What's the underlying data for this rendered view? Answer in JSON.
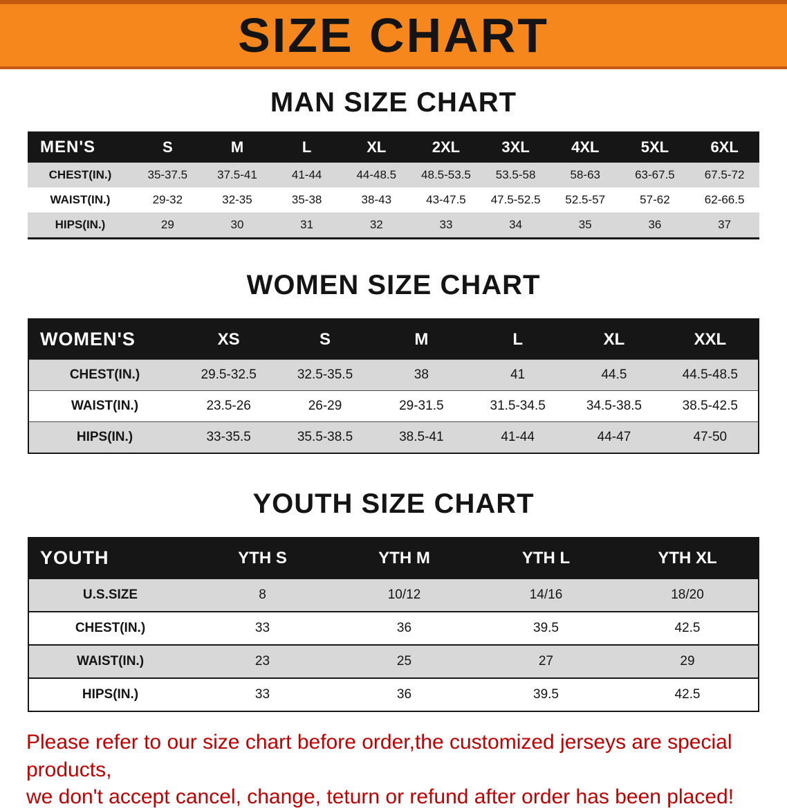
{
  "banner": {
    "title": "SIZE CHART"
  },
  "colors": {
    "banner_orange": "#f6871d",
    "banner_trim": "#c45911",
    "header_black": "#161616",
    "row_gray": "#d8d8d8",
    "disclaimer_red": "#c00000"
  },
  "sections": {
    "men": {
      "heading": "MAN SIZE CHART",
      "table": {
        "header": [
          "MEN'S",
          "S",
          "M",
          "L",
          "XL",
          "2XL",
          "3XL",
          "4XL",
          "5XL",
          "6XL"
        ],
        "rows": [
          [
            "CHEST(IN.)",
            "35-37.5",
            "37.5-41",
            "41-44",
            "44-48.5",
            "48.5-53.5",
            "53.5-58",
            "58-63",
            "63-67.5",
            "67.5-72"
          ],
          [
            "WAIST(IN.)",
            "29-32",
            "32-35",
            "35-38",
            "38-43",
            "43-47.5",
            "47.5-52.5",
            "52.5-57",
            "57-62",
            "62-66.5"
          ],
          [
            "HIPS(IN.)",
            "29",
            "30",
            "31",
            "32",
            "33",
            "34",
            "35",
            "36",
            "37"
          ]
        ]
      }
    },
    "women": {
      "heading": "WOMEN SIZE CHART",
      "table": {
        "header": [
          "WOMEN'S",
          "XS",
          "S",
          "M",
          "L",
          "XL",
          "XXL"
        ],
        "rows": [
          [
            "CHEST(IN.)",
            "29.5-32.5",
            "32.5-35.5",
            "38",
            "41",
            "44.5",
            "44.5-48.5"
          ],
          [
            "WAIST(IN.)",
            "23.5-26",
            "26-29",
            "29-31.5",
            "31.5-34.5",
            "34.5-38.5",
            "38.5-42.5"
          ],
          [
            "HIPS(IN.)",
            "33-35.5",
            "35.5-38.5",
            "38.5-41",
            "41-44",
            "44-47",
            "47-50"
          ]
        ]
      }
    },
    "youth": {
      "heading": "YOUTH SIZE CHART",
      "table": {
        "header": [
          "YOUTH",
          "YTH S",
          "YTH M",
          "YTH L",
          "YTH XL"
        ],
        "rows": [
          [
            "U.S.SIZE",
            "8",
            "10/12",
            "14/16",
            "18/20"
          ],
          [
            "CHEST(IN.)",
            "33",
            "36",
            "39.5",
            "42.5"
          ],
          [
            "WAIST(IN.)",
            "23",
            "25",
            "27",
            "29"
          ],
          [
            "HIPS(IN.)",
            "33",
            "36",
            "39.5",
            "42.5"
          ]
        ]
      }
    }
  },
  "disclaimer": {
    "line1": "Please refer to our size chart before order,the customized jerseys are special products,",
    "line2": "we don't accept cancel, change, teturn or refund after order has been placed!"
  }
}
